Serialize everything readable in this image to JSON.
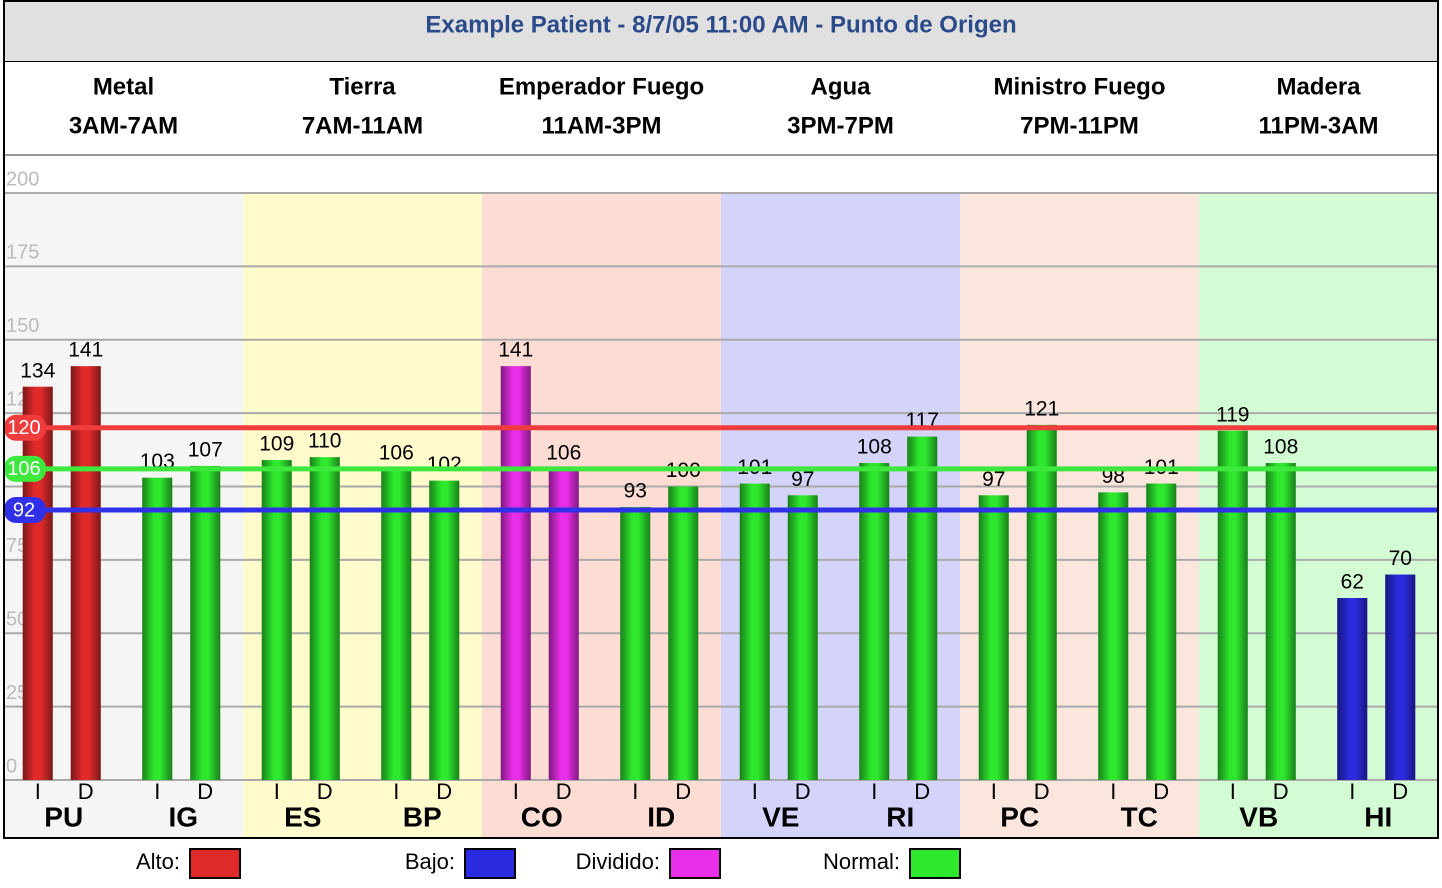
{
  "chart_data": {
    "type": "bar",
    "title": "Example Patient - 8/7/05 11:00 AM - Punto de Origen",
    "groups": [
      {
        "name": "Metal",
        "time": "3AM-7AM",
        "color": "#f5f5f5"
      },
      {
        "name": "Tierra",
        "time": "7AM-11AM",
        "color": "#fffbcc"
      },
      {
        "name": "Emperador Fuego",
        "time": "11AM-3PM",
        "color": "#fddcd4"
      },
      {
        "name": "Agua",
        "time": "3PM-7PM",
        "color": "#d4d4fb"
      },
      {
        "name": "Ministro Fuego",
        "time": "7PM-11PM",
        "color": "#fbe6de"
      },
      {
        "name": "Madera",
        "time": "11PM-3AM",
        "color": "#d4fcd4"
      }
    ],
    "categories": [
      "PU",
      "IG",
      "ES",
      "BP",
      "CO",
      "ID",
      "VE",
      "RI",
      "PC",
      "TC",
      "VB",
      "HI"
    ],
    "series": [
      {
        "name": "I",
        "values": [
          134,
          103,
          109,
          106,
          141,
          93,
          101,
          108,
          97,
          98,
          119,
          62
        ],
        "colors": [
          "#e02a2a",
          "#2ee82e",
          "#2ee82e",
          "#2ee82e",
          "#e82ee8",
          "#2ee82e",
          "#2ee82e",
          "#2ee82e",
          "#2ee82e",
          "#2ee82e",
          "#2ee82e",
          "#2a2ae0"
        ]
      },
      {
        "name": "D",
        "values": [
          141,
          107,
          110,
          102,
          106,
          100,
          97,
          117,
          121,
          101,
          108,
          70
        ],
        "colors": [
          "#e02a2a",
          "#2ee82e",
          "#2ee82e",
          "#2ee82e",
          "#e82ee8",
          "#2ee82e",
          "#2ee82e",
          "#2ee82e",
          "#2ee82e",
          "#2ee82e",
          "#2ee82e",
          "#2a2ae0"
        ]
      }
    ],
    "reference_lines": [
      {
        "value": 120,
        "color": "#f03c3c"
      },
      {
        "value": 106,
        "color": "#3ce83c"
      },
      {
        "value": 92,
        "color": "#3030e8"
      }
    ],
    "ylim": [
      0,
      200
    ],
    "yticks": [
      0,
      25,
      50,
      75,
      100,
      125,
      150,
      175,
      200
    ],
    "grid": true,
    "legend": [
      {
        "label": "Alto:",
        "color": "#e02a2a"
      },
      {
        "label": "Bajo:",
        "color": "#2a2ae0"
      },
      {
        "label": "Dividido:",
        "color": "#e82ee8"
      },
      {
        "label": "Normal:",
        "color": "#2ee82e"
      }
    ]
  }
}
